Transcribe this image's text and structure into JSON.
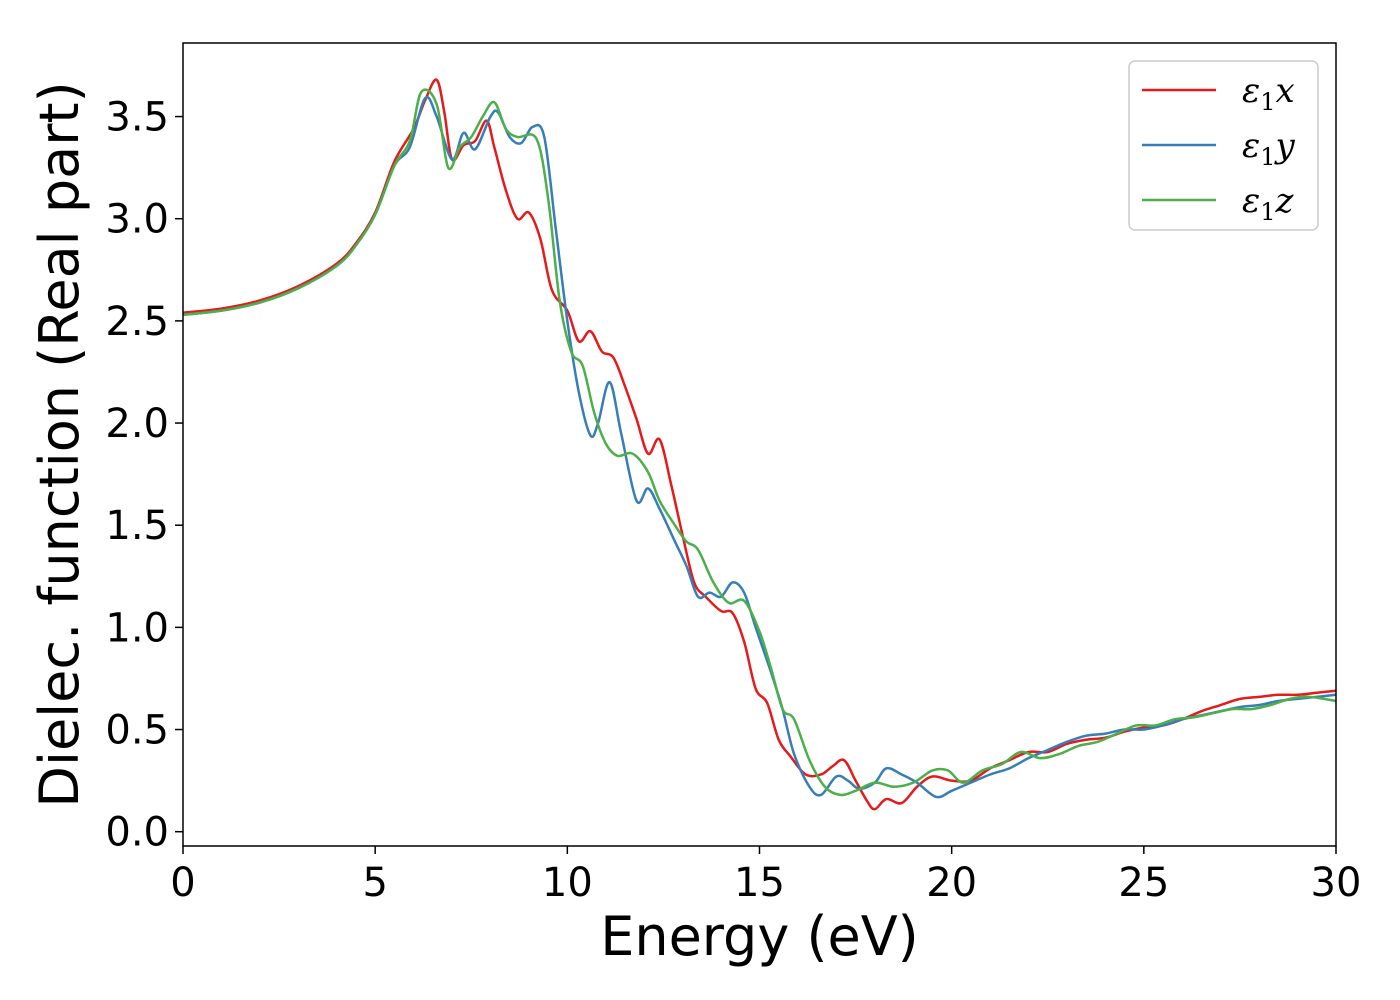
{
  "chart_data": {
    "type": "line",
    "xlabel": "Energy (eV)",
    "ylabel": "Dielec. function (Real part)",
    "xlim": [
      0,
      30
    ],
    "ylim": [
      -0.07,
      3.86
    ],
    "xticks": [
      0,
      5,
      10,
      15,
      20,
      25,
      30
    ],
    "yticks": [
      0.0,
      0.5,
      1.0,
      1.5,
      2.0,
      2.5,
      3.0,
      3.5
    ],
    "xtick_labels": [
      "0",
      "5",
      "10",
      "15",
      "20",
      "25",
      "30"
    ],
    "ytick_labels": [
      "0.0",
      "0.5",
      "1.0",
      "1.5",
      "2.0",
      "2.5",
      "3.0",
      "3.5"
    ],
    "grid": false,
    "legend": {
      "position": "top-right",
      "entries": [
        {
          "sym": "ε",
          "sub": "1",
          "var": "x"
        },
        {
          "sym": "ε",
          "sub": "1",
          "var": "y"
        },
        {
          "sym": "ε",
          "sub": "1",
          "var": "z"
        }
      ]
    },
    "series": [
      {
        "name": "ε1x",
        "color": "#e41a1c",
        "points": [
          [
            0,
            2.54
          ],
          [
            1,
            2.56
          ],
          [
            2,
            2.6
          ],
          [
            3,
            2.67
          ],
          [
            4,
            2.78
          ],
          [
            4.5,
            2.88
          ],
          [
            5,
            3.03
          ],
          [
            5.5,
            3.28
          ],
          [
            6,
            3.44
          ],
          [
            6.3,
            3.58
          ],
          [
            6.6,
            3.68
          ],
          [
            6.8,
            3.52
          ],
          [
            7,
            3.29
          ],
          [
            7.3,
            3.36
          ],
          [
            7.6,
            3.38
          ],
          [
            7.9,
            3.48
          ],
          [
            8.1,
            3.35
          ],
          [
            8.4,
            3.14
          ],
          [
            8.7,
            3.0
          ],
          [
            9,
            3.03
          ],
          [
            9.3,
            2.9
          ],
          [
            9.6,
            2.65
          ],
          [
            10,
            2.55
          ],
          [
            10.3,
            2.4
          ],
          [
            10.6,
            2.45
          ],
          [
            10.9,
            2.35
          ],
          [
            11.2,
            2.32
          ],
          [
            11.5,
            2.18
          ],
          [
            11.8,
            2.02
          ],
          [
            12.1,
            1.85
          ],
          [
            12.4,
            1.92
          ],
          [
            12.7,
            1.7
          ],
          [
            13,
            1.45
          ],
          [
            13.3,
            1.22
          ],
          [
            13.6,
            1.15
          ],
          [
            14,
            1.08
          ],
          [
            14.3,
            1.07
          ],
          [
            14.6,
            0.93
          ],
          [
            14.9,
            0.7
          ],
          [
            15.2,
            0.63
          ],
          [
            15.5,
            0.45
          ],
          [
            15.8,
            0.37
          ],
          [
            16.2,
            0.28
          ],
          [
            16.6,
            0.28
          ],
          [
            16.9,
            0.32
          ],
          [
            17.2,
            0.35
          ],
          [
            17.5,
            0.25
          ],
          [
            17.8,
            0.15
          ],
          [
            18,
            0.11
          ],
          [
            18.3,
            0.16
          ],
          [
            18.7,
            0.14
          ],
          [
            19.1,
            0.22
          ],
          [
            19.5,
            0.27
          ],
          [
            20,
            0.25
          ],
          [
            20.5,
            0.25
          ],
          [
            21,
            0.31
          ],
          [
            21.5,
            0.35
          ],
          [
            22,
            0.39
          ],
          [
            22.5,
            0.39
          ],
          [
            23,
            0.43
          ],
          [
            23.5,
            0.45
          ],
          [
            24,
            0.46
          ],
          [
            24.5,
            0.49
          ],
          [
            25,
            0.51
          ],
          [
            25.5,
            0.52
          ],
          [
            26,
            0.55
          ],
          [
            26.5,
            0.59
          ],
          [
            27,
            0.62
          ],
          [
            27.5,
            0.65
          ],
          [
            28,
            0.66
          ],
          [
            28.5,
            0.67
          ],
          [
            29,
            0.67
          ],
          [
            29.5,
            0.68
          ],
          [
            30,
            0.69
          ]
        ]
      },
      {
        "name": "ε1y",
        "color": "#377eb8",
        "points": [
          [
            0,
            2.53
          ],
          [
            1,
            2.55
          ],
          [
            2,
            2.59
          ],
          [
            3,
            2.66
          ],
          [
            4,
            2.77
          ],
          [
            4.5,
            2.87
          ],
          [
            5,
            3.02
          ],
          [
            5.5,
            3.26
          ],
          [
            5.9,
            3.35
          ],
          [
            6.3,
            3.59
          ],
          [
            6.6,
            3.5
          ],
          [
            7,
            3.29
          ],
          [
            7.3,
            3.42
          ],
          [
            7.6,
            3.34
          ],
          [
            8,
            3.5
          ],
          [
            8.2,
            3.52
          ],
          [
            8.5,
            3.4
          ],
          [
            8.8,
            3.37
          ],
          [
            9.1,
            3.45
          ],
          [
            9.4,
            3.4
          ],
          [
            9.7,
            2.95
          ],
          [
            10,
            2.5
          ],
          [
            10.3,
            2.15
          ],
          [
            10.6,
            1.94
          ],
          [
            10.8,
            2.0
          ],
          [
            11.1,
            2.2
          ],
          [
            11.4,
            1.95
          ],
          [
            11.8,
            1.62
          ],
          [
            12.1,
            1.68
          ],
          [
            12.4,
            1.58
          ],
          [
            12.8,
            1.42
          ],
          [
            13.1,
            1.3
          ],
          [
            13.4,
            1.15
          ],
          [
            13.7,
            1.17
          ],
          [
            14,
            1.15
          ],
          [
            14.3,
            1.22
          ],
          [
            14.6,
            1.17
          ],
          [
            14.9,
            1.0
          ],
          [
            15.3,
            0.78
          ],
          [
            15.6,
            0.6
          ],
          [
            15.9,
            0.38
          ],
          [
            16.3,
            0.22
          ],
          [
            16.6,
            0.18
          ],
          [
            17,
            0.27
          ],
          [
            17.3,
            0.25
          ],
          [
            17.6,
            0.21
          ],
          [
            18,
            0.24
          ],
          [
            18.3,
            0.31
          ],
          [
            18.7,
            0.28
          ],
          [
            19.1,
            0.24
          ],
          [
            19.6,
            0.17
          ],
          [
            20,
            0.2
          ],
          [
            20.5,
            0.24
          ],
          [
            21,
            0.28
          ],
          [
            21.5,
            0.31
          ],
          [
            22,
            0.36
          ],
          [
            22.5,
            0.4
          ],
          [
            23,
            0.44
          ],
          [
            23.5,
            0.47
          ],
          [
            24,
            0.48
          ],
          [
            24.5,
            0.5
          ],
          [
            25,
            0.5
          ],
          [
            25.5,
            0.52
          ],
          [
            26,
            0.55
          ],
          [
            26.5,
            0.57
          ],
          [
            27,
            0.59
          ],
          [
            27.5,
            0.61
          ],
          [
            28,
            0.62
          ],
          [
            28.5,
            0.64
          ],
          [
            29,
            0.65
          ],
          [
            29.5,
            0.66
          ],
          [
            30,
            0.67
          ]
        ]
      },
      {
        "name": "ε1z",
        "color": "#4daf4a",
        "points": [
          [
            0,
            2.53
          ],
          [
            1,
            2.55
          ],
          [
            2,
            2.59
          ],
          [
            3,
            2.66
          ],
          [
            4,
            2.77
          ],
          [
            4.5,
            2.87
          ],
          [
            5,
            3.02
          ],
          [
            5.5,
            3.26
          ],
          [
            5.9,
            3.38
          ],
          [
            6.2,
            3.62
          ],
          [
            6.6,
            3.56
          ],
          [
            6.9,
            3.25
          ],
          [
            7.2,
            3.35
          ],
          [
            7.5,
            3.4
          ],
          [
            7.8,
            3.5
          ],
          [
            8.1,
            3.57
          ],
          [
            8.4,
            3.44
          ],
          [
            8.7,
            3.4
          ],
          [
            9.2,
            3.39
          ],
          [
            9.5,
            3.1
          ],
          [
            9.8,
            2.6
          ],
          [
            10.1,
            2.35
          ],
          [
            10.4,
            2.28
          ],
          [
            10.7,
            2.05
          ],
          [
            11,
            1.9
          ],
          [
            11.3,
            1.84
          ],
          [
            11.7,
            1.85
          ],
          [
            12.1,
            1.76
          ],
          [
            12.4,
            1.62
          ],
          [
            12.8,
            1.5
          ],
          [
            13.1,
            1.42
          ],
          [
            13.4,
            1.38
          ],
          [
            13.8,
            1.22
          ],
          [
            14.2,
            1.12
          ],
          [
            14.6,
            1.13
          ],
          [
            15,
            0.98
          ],
          [
            15.3,
            0.8
          ],
          [
            15.6,
            0.6
          ],
          [
            15.9,
            0.55
          ],
          [
            16.3,
            0.35
          ],
          [
            16.7,
            0.22
          ],
          [
            17.1,
            0.18
          ],
          [
            17.5,
            0.2
          ],
          [
            18,
            0.24
          ],
          [
            18.5,
            0.22
          ],
          [
            19,
            0.24
          ],
          [
            19.5,
            0.3
          ],
          [
            19.9,
            0.3
          ],
          [
            20.3,
            0.24
          ],
          [
            20.8,
            0.3
          ],
          [
            21.3,
            0.33
          ],
          [
            21.8,
            0.39
          ],
          [
            22.3,
            0.36
          ],
          [
            22.8,
            0.38
          ],
          [
            23.3,
            0.42
          ],
          [
            23.8,
            0.44
          ],
          [
            24.3,
            0.48
          ],
          [
            24.8,
            0.52
          ],
          [
            25.3,
            0.52
          ],
          [
            25.8,
            0.55
          ],
          [
            26.3,
            0.56
          ],
          [
            26.8,
            0.58
          ],
          [
            27.3,
            0.6
          ],
          [
            27.8,
            0.6
          ],
          [
            28.3,
            0.62
          ],
          [
            28.8,
            0.65
          ],
          [
            29.3,
            0.66
          ],
          [
            30,
            0.64
          ]
        ]
      }
    ]
  }
}
